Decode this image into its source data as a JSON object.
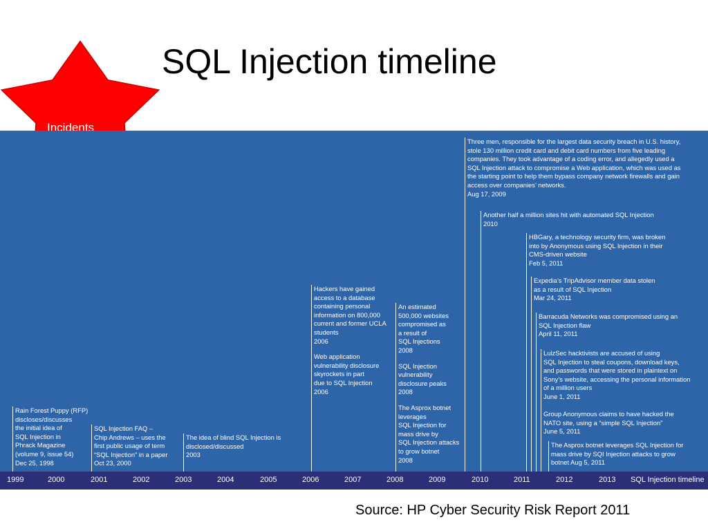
{
  "title": "SQL Injection timeline",
  "badge": {
    "label": "Incidents",
    "color": "#ff0000"
  },
  "source": "Source: HP Cyber Security Risk Report 2011",
  "axis": {
    "years": [
      "1999",
      "2000",
      "2001",
      "2002",
      "2003",
      "2004",
      "2005",
      "2006",
      "2007",
      "2008",
      "2009",
      "2010",
      "2011",
      "2012",
      "2013"
    ],
    "label": "SQL Injection timeline"
  },
  "colors": {
    "panel": "#2e65a8",
    "axis_bar": "#2b2f78",
    "text": "#ffffff"
  },
  "events": [
    {
      "lines": "Rain Forest Puppy (RFP)\ndiscloses/discusses\nthe initial idea of\nSQL Injection in\nPhrack Magazine\n(volume 9, issue 54)\nDec 25, 1998"
    },
    {
      "lines": "SQL Injection FAQ –\nChip Andrews – uses the\nfirst public usage of term\n“SQL Injection” in a paper\nOct 23, 2000"
    },
    {
      "lines": "The idea of blind SQL Injection is\ndisclosed/discussed\n2003"
    },
    {
      "lines": "Hackers have gained\naccess to a database\ncontaining personal\ninformation on 800,000\ncurrent and former UCLA\nstudents\n2006",
      "lines2": "Web application\nvulnerability disclosure\nskyrockets in part\ndue to SQL Injection\n2006"
    },
    {
      "lines": "An estimated\n500,000 websites\ncompromised as\na result of\nSQL Injections\n2008",
      "lines2": "SQL Injection\nvulnerability\ndisclosure peaks\n2008",
      "lines3": "The Asprox botnet\nleverages\nSQL Injection for\nmass drive by\nSQL Injection attacks\nto grow botnet\n2008"
    },
    {
      "lines": "Three men, responsible for the largest data security breach in U.S. history,\nstole 130 million credit card and debit card numbers from five leading\ncompanies. They took advantage of a coding error, and allegedly used a\nSQL Injection attack to compromise a Web application, which was used as\nthe starting point to help them bypass company network firewalls and gain\naccess over companies’ networks.\nAug 17, 2009"
    },
    {
      "lines": "Another half a million sites hit with automated SQL Injection\n2010"
    },
    {
      "lines": "HBGary, a technology security firm, was broken\ninto by Anonymous using SQL Injection in their\nCMS-driven website\nFeb 5, 2011"
    },
    {
      "lines": "Expedia’s TripAdvisor member data stolen\nas a result of SQL Injection\nMar 24, 2011"
    },
    {
      "lines": "Barracuda Networks was compromised using an\nSQL Injection flaw\nApril 11, 2011"
    },
    {
      "lines": "LulzSec hacktivists are accused of using\nSQL Injection to steal coupons, download keys,\nand passwords that were stored in plaintext on\nSony’s website, accessing the personal information\nof a million users\nJune 1, 2011"
    },
    {
      "lines": "Group Anonymous claims to have hacked the\nNATO site, using a “simple SQL Injection”\nJune 5, 2011"
    },
    {
      "lines": "The Asprox botnet leverages SQL Injection for\nmass drive by SQI Injection attacks to grow\nbotnet Aug 5, 2011"
    }
  ]
}
